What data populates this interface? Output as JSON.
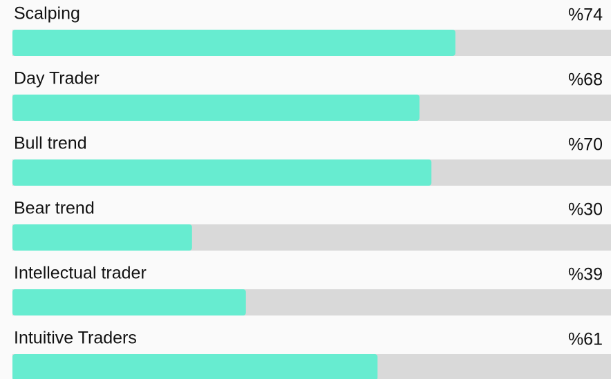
{
  "chart_data": {
    "type": "bar",
    "orientation": "horizontal",
    "categories": [
      "Scalping",
      "Day Trader",
      "Bull trend",
      "Bear trend",
      "Intellectual trader",
      "Intuitive Traders"
    ],
    "values": [
      74,
      68,
      70,
      30,
      39,
      61
    ],
    "value_labels": [
      "%74",
      "%68",
      "%70",
      "%30",
      "%39",
      "%61"
    ],
    "xlim": [
      0,
      100
    ],
    "color": "#67ecd0",
    "track_color": "#d9d9d9"
  }
}
